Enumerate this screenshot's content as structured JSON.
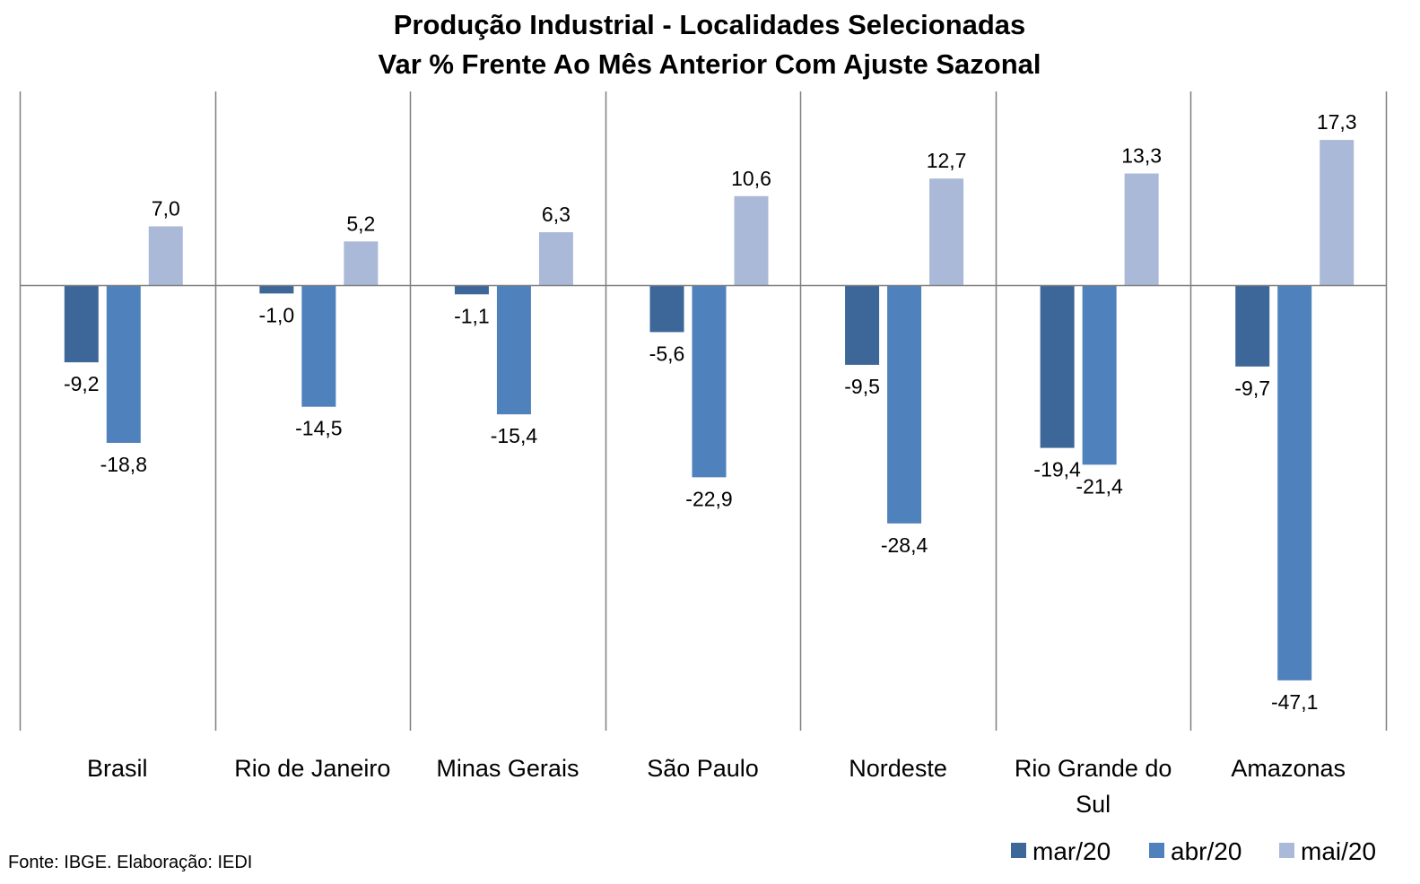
{
  "chart_data": {
    "type": "bar",
    "title": "Produção Industrial - Localidades Selecionadas",
    "subtitle": "Var % Frente Ao Mês Anterior Com Ajuste Sazonal",
    "categories": [
      "Brasil",
      "Rio de Janeiro",
      "Minas Gerais",
      "São Paulo",
      "Nordeste",
      "Rio Grande do Sul",
      "Amazonas"
    ],
    "series": [
      {
        "name": "mar/20",
        "color": "#3d6699",
        "values": [
          -9.2,
          -1.0,
          -1.1,
          -5.6,
          -9.5,
          -19.4,
          -9.7
        ],
        "labels": [
          "-9,2",
          "-1,0",
          "-1,1",
          "-5,6",
          "-9,5",
          "-19,4",
          "-9,7"
        ]
      },
      {
        "name": "abr/20",
        "color": "#4f81bd",
        "values": [
          -18.8,
          -14.5,
          -15.4,
          -22.9,
          -28.4,
          -21.4,
          -47.1
        ],
        "labels": [
          "-18,8",
          "-14,5",
          "-15,4",
          "-22,9",
          "-28,4",
          "-21,4",
          "-47,1"
        ]
      },
      {
        "name": "mai/20",
        "color": "#aab9d7",
        "values": [
          7.0,
          5.2,
          6.3,
          10.6,
          12.7,
          13.3,
          17.3
        ],
        "labels": [
          "7,0",
          "5,2",
          "6,3",
          "10,6",
          "12,7",
          "13,3",
          "17,3"
        ]
      }
    ],
    "ylim": [
      -52.3,
      23.0
    ],
    "grid": false,
    "legend": "bottom-right",
    "source": "Fonte: IBGE. Elaboração: IEDI"
  }
}
